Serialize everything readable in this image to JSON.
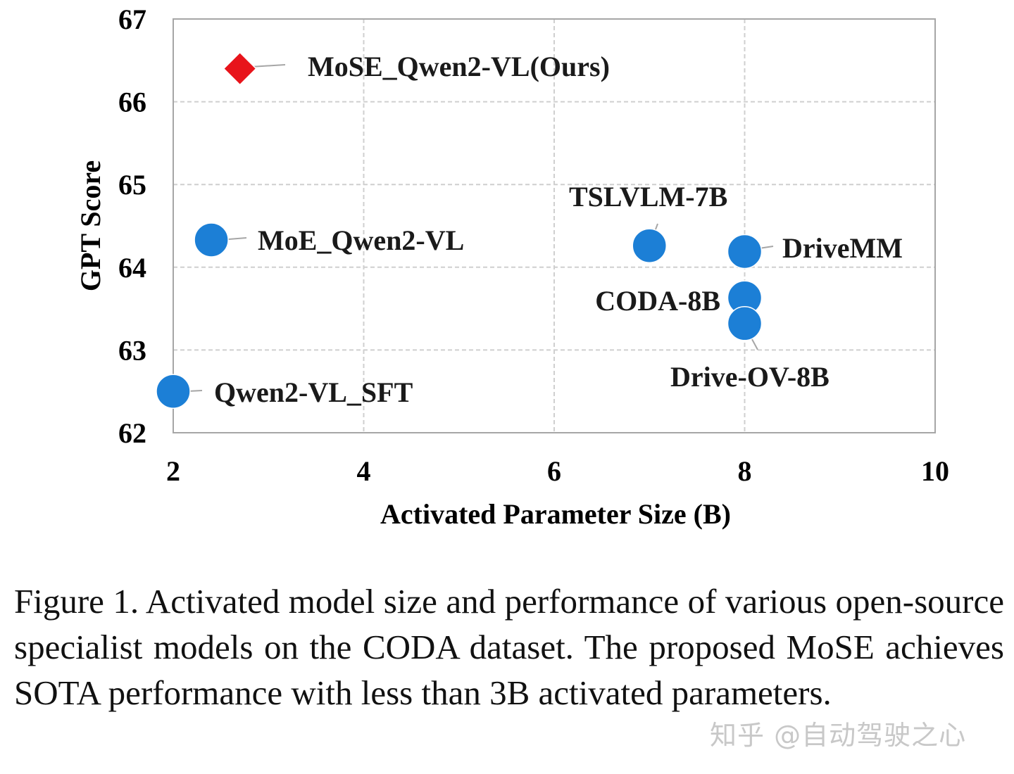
{
  "chart_data": {
    "type": "scatter",
    "xlabel": "Activated Parameter Size (B)",
    "ylabel": "GPT Score",
    "xlim": [
      2,
      10
    ],
    "ylim": [
      62,
      67
    ],
    "xticks": [
      2,
      4,
      6,
      8,
      10
    ],
    "yticks": [
      62,
      63,
      64,
      65,
      66,
      67
    ],
    "grid": true,
    "points": [
      {
        "name": "MoSE_Qwen2-VL(Ours)",
        "x": 2.7,
        "y": 66.4,
        "marker": "diamond",
        "color": "#e8141b"
      },
      {
        "name": "MoE_Qwen2-VL",
        "x": 2.4,
        "y": 64.33,
        "marker": "circle",
        "color": "#1c7fd6"
      },
      {
        "name": "Qwen2-VL_SFT",
        "x": 2.0,
        "y": 62.5,
        "marker": "circle",
        "color": "#1c7fd6"
      },
      {
        "name": "TSLVLM-7B",
        "x": 7.0,
        "y": 64.26,
        "marker": "circle",
        "color": "#1c7fd6"
      },
      {
        "name": "DriveMM",
        "x": 8.0,
        "y": 64.19,
        "marker": "circle",
        "color": "#1c7fd6"
      },
      {
        "name": "CODA-8B",
        "x": 8.0,
        "y": 63.63,
        "marker": "circle",
        "color": "#1c7fd6"
      },
      {
        "name": "Drive-OV-8B",
        "x": 8.0,
        "y": 63.32,
        "marker": "circle",
        "color": "#1c7fd6"
      }
    ]
  },
  "caption": "Figure 1. Activated model size and performance of various open-source specialist models on the CODA dataset.  The proposed MoSE achieves SOTA performance with less than 3B activated parameters.",
  "watermark": "知乎 @自动驾驶之心"
}
